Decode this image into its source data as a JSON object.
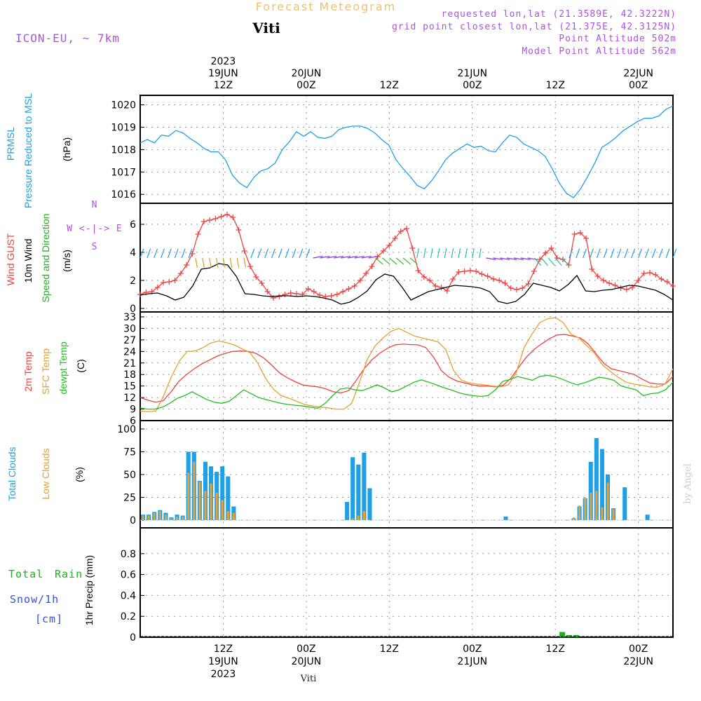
{
  "header": {
    "title": "Forecast Meteogram",
    "station": "Viti",
    "model": "ICON-EU, ~ 7km",
    "requested": "requested lon,lat (21.3589E, 42.3222N)",
    "grid_point": "grid point closest lon,lat (21.375E, 42.3125N)",
    "point_altitude": "Point Altitude 502m",
    "model_altitude": "Model Point Altitude 562m",
    "watermark": "by Angel",
    "footer_station": "Viti"
  },
  "colors": {
    "pressure": "#1ea0e6",
    "gust": "#f04040",
    "wind": "#000000",
    "direction": "#20b020",
    "temp": "#f04040",
    "sfc_temp": "#e8a030",
    "dewpt": "#20c020",
    "total_clouds": "#1ea0e6",
    "low_clouds": "#e8a030",
    "rain": "#20b020",
    "snow": "#3050e0",
    "info": "#b050e0"
  },
  "time_axis": {
    "top_labels": [
      {
        "hour": 12,
        "year": "2023",
        "date": "19JUN",
        "time": "12Z"
      },
      {
        "hour": 24,
        "date": "20JUN",
        "time": "00Z"
      },
      {
        "hour": 36,
        "time": "12Z"
      },
      {
        "hour": 48,
        "date": "21JUN",
        "time": "00Z"
      },
      {
        "hour": 60,
        "time": "12Z"
      },
      {
        "hour": 72,
        "date": "22JUN",
        "time": "00Z"
      }
    ],
    "bottom_labels": [
      {
        "hour": 12,
        "time": "12Z",
        "date": "19JUN",
        "year": "2023"
      },
      {
        "hour": 24,
        "time": "00Z",
        "date": "20JUN"
      },
      {
        "hour": 36,
        "time": "12Z"
      },
      {
        "hour": 48,
        "time": "00Z",
        "date": "21JUN"
      },
      {
        "hour": 60,
        "time": "12Z"
      },
      {
        "hour": 72,
        "time": "00Z",
        "date": "22JUN"
      }
    ]
  },
  "panels": {
    "pressure": {
      "label1": "PRMSL",
      "label2": "Pressure Reduced to MSL",
      "unit": "(hPa)"
    },
    "wind": {
      "label1": "Wind GUST",
      "label2": "10m Wind",
      "label3": "Speed and Direction",
      "unit": "(m/s)",
      "compass_ns": "N",
      "compass_we": "W <-|-> E",
      "compass_s": "S"
    },
    "temp": {
      "label1": "2m Temp",
      "label2": "SFC Temp",
      "label3": "dewpt Temp",
      "unit": "(C)"
    },
    "clouds": {
      "label1": "Total Clouds",
      "label2": "Low Clouds",
      "unit": "(%)"
    },
    "precip": {
      "label1": "Total",
      "label1b": "Rain",
      "label2": "Snow/1h",
      "label3": "[cm]",
      "unit": "1hr Precip (mm)"
    }
  },
  "chart_data": [
    {
      "id": "pressure",
      "type": "line",
      "title": "PRMSL Pressure Reduced to MSL",
      "ylabel": "hPa",
      "ylim": [
        1015.6,
        1020.3
      ],
      "yticks": [
        1016,
        1017,
        1018,
        1019,
        1020
      ],
      "x_start_hour": 0,
      "x_step_hours": 1,
      "series": [
        {
          "name": "PRMSL",
          "values": [
            1018.3,
            1018.45,
            1018.3,
            1018.65,
            1018.6,
            1018.85,
            1018.75,
            1018.5,
            1018.3,
            1018.05,
            1017.9,
            1017.9,
            1017.55,
            1016.85,
            1016.5,
            1016.3,
            1016.75,
            1017.05,
            1017.15,
            1017.4,
            1018.0,
            1018.35,
            1018.8,
            1018.6,
            1018.8,
            1018.55,
            1018.5,
            1018.6,
            1018.9,
            1019.0,
            1019.05,
            1019.05,
            1018.95,
            1018.75,
            1018.45,
            1018.2,
            1017.55,
            1017.15,
            1016.8,
            1016.4,
            1016.25,
            1016.6,
            1017.05,
            1017.55,
            1017.85,
            1018.05,
            1018.25,
            1018.1,
            1018.15,
            1017.95,
            1017.9,
            1018.3,
            1018.65,
            1018.55,
            1018.25,
            1018.1,
            1017.95,
            1017.7,
            1017.15,
            1016.5,
            1016.05,
            1015.85,
            1016.25,
            1016.8,
            1017.4,
            1018.1,
            1018.3,
            1018.55,
            1018.85,
            1019.05,
            1019.25,
            1019.4,
            1019.4,
            1019.5,
            1019.8,
            1019.95
          ]
        }
      ]
    },
    {
      "id": "wind",
      "type": "line",
      "title": "Wind GUST / 10m Wind Speed and Direction",
      "ylabel": "m/s",
      "ylim": [
        0,
        7
      ],
      "yticks": [
        0,
        2,
        4,
        6
      ],
      "x_start_hour": 0,
      "x_step_hours": 1,
      "series": [
        {
          "name": "Wind GUST",
          "values": [
            1.0,
            1.15,
            1.2,
            1.5,
            1.85,
            1.9,
            2.0,
            2.5,
            3.1,
            3.9,
            5.3,
            6.2,
            6.3,
            6.4,
            6.55,
            6.7,
            6.5,
            5.6,
            4.1,
            3.0,
            2.25,
            1.8,
            1.2,
            0.75,
            0.85,
            1.0,
            1.1,
            1.05,
            1.0,
            1.4,
            1.2,
            0.95,
            0.85,
            0.9,
            1.0,
            1.2,
            1.4,
            1.6,
            2.0,
            2.5,
            3.0,
            3.7,
            4.1,
            4.5,
            5.0,
            5.5,
            5.7,
            4.3,
            2.7,
            2.25,
            2.0,
            1.6,
            1.5,
            1.25,
            2.1,
            2.6,
            2.65,
            2.7,
            2.65,
            2.45,
            2.3,
            2.1,
            2.0,
            1.8,
            1.45,
            1.35,
            1.45,
            1.75,
            2.65,
            3.5,
            3.95,
            4.3,
            3.6,
            3.5,
            3.1,
            5.3,
            5.4,
            5.0,
            2.8,
            2.3,
            2.0,
            1.8,
            1.65,
            1.45,
            1.35,
            1.5,
            2.0,
            2.5,
            2.55,
            2.4,
            2.1,
            1.9,
            1.6
          ]
        },
        {
          "name": "10m Wind",
          "values": [
            0.95,
            1.05,
            1.1,
            0.9,
            0.6,
            0.8,
            1.6,
            2.8,
            2.9,
            3.2,
            3.1,
            2.3,
            1.05,
            1.0,
            0.9,
            0.85,
            0.9,
            0.9,
            0.85,
            0.9,
            0.85,
            0.75,
            0.6,
            0.3,
            0.45,
            0.8,
            1.25,
            2.05,
            2.45,
            2.3,
            1.5,
            0.6,
            0.9,
            1.2,
            1.35,
            1.5,
            1.65,
            1.6,
            1.55,
            1.45,
            1.2,
            0.5,
            0.35,
            0.5,
            1.0,
            1.8,
            1.65,
            1.5,
            1.25,
            1.7,
            2.35,
            1.25,
            1.2,
            1.3,
            1.35,
            1.5,
            1.65,
            1.6,
            1.45,
            1.3,
            1.0,
            0.6
          ]
        },
        {
          "name": "Direction arrows",
          "values": [
            "N"
          ]
        }
      ]
    },
    {
      "id": "temp",
      "type": "line",
      "title": "2m Temp / SFC Temp / dewpt Temp",
      "ylabel": "C",
      "ylim": [
        6,
        33
      ],
      "yticks": [
        6,
        9,
        12,
        15,
        18,
        21,
        24,
        27,
        30,
        33
      ],
      "x_start_hour": 0,
      "x_step_hours": 1,
      "series": [
        {
          "name": "2m Temp",
          "values": [
            12.0,
            11.3,
            10.8,
            11.2,
            13.5,
            16.2,
            18.0,
            19.5,
            20.8,
            21.8,
            22.8,
            23.5,
            24.0,
            24.1,
            24.0,
            23.5,
            22.3,
            20.5,
            18.5,
            17.2,
            16.2,
            15.3,
            15.0,
            14.8,
            14.3,
            13.5,
            13.2,
            13.8,
            16.5,
            19.5,
            21.8,
            23.5,
            24.8,
            25.7,
            25.9,
            25.8,
            25.7,
            25.0,
            22.5,
            19.0,
            17.3,
            16.3,
            15.8,
            15.3,
            15.0,
            15.0,
            14.8,
            15.2,
            17.0,
            19.8,
            22.5,
            24.5,
            26.0,
            27.3,
            28.3,
            28.4,
            28.0,
            27.5,
            26.0,
            23.5,
            21.0,
            19.5,
            19.0,
            18.5,
            18.0,
            16.8,
            15.8,
            15.5,
            15.5,
            17.5
          ]
        },
        {
          "name": "SFC Temp",
          "values": [
            8.5,
            8.3,
            8.5,
            12.5,
            17.5,
            21.5,
            24.0,
            24.1,
            25.0,
            26.2,
            26.7,
            26.3,
            25.7,
            24.7,
            23.7,
            21.0,
            17.0,
            14.2,
            12.5,
            11.8,
            11.0,
            10.2,
            9.8,
            9.5,
            9.3,
            9.0,
            9.0,
            10.5,
            16.0,
            22.0,
            25.5,
            27.5,
            29.2,
            30.0,
            29.0,
            28.0,
            27.5,
            27.0,
            26.5,
            24.5,
            19.0,
            16.5,
            15.8,
            15.5,
            15.3,
            15.0,
            14.8,
            15.3,
            18.5,
            25.0,
            28.5,
            31.5,
            32.5,
            32.8,
            31.5,
            28.5,
            27.5,
            25.5,
            23.5,
            20.5,
            18.8,
            17.3,
            16.0,
            15.5,
            15.2,
            14.8,
            14.7,
            15.5,
            19.5
          ]
        },
        {
          "name": "dewpt Temp",
          "values": [
            9.3,
            9.0,
            9.0,
            9.5,
            10.5,
            11.8,
            12.5,
            13.5,
            12.5,
            11.5,
            10.8,
            10.5,
            11.0,
            12.5,
            14.0,
            13.0,
            12.0,
            11.5,
            11.0,
            10.5,
            10.2,
            10.0,
            9.8,
            9.5,
            9.2,
            10.5,
            12.5,
            14.2,
            14.5,
            14.0,
            13.8,
            14.5,
            15.3,
            14.5,
            13.5,
            14.0,
            15.0,
            16.0,
            16.6,
            16.0,
            15.3,
            14.6,
            14.0,
            13.3,
            12.8,
            12.5,
            12.3,
            12.5,
            14.0,
            16.2,
            16.7,
            17.5,
            17.0,
            16.5,
            17.5,
            17.8,
            17.5,
            16.8,
            16.0,
            15.3,
            15.8,
            16.5,
            17.3,
            17.0,
            16.5,
            15.0,
            14.5,
            14.0,
            12.5,
            13.0,
            13.2,
            14.0,
            16.0
          ]
        }
      ]
    },
    {
      "id": "clouds",
      "type": "bar",
      "title": "Total Clouds / Low Clouds",
      "ylabel": "%",
      "ylim": [
        0,
        103
      ],
      "yticks": [
        0,
        25,
        50,
        75,
        100
      ],
      "x_start_hour": 0,
      "x_step_hours": 1,
      "series": [
        {
          "name": "Total Clouds",
          "values": [
            6,
            6,
            9,
            11,
            8,
            3,
            6,
            5,
            75,
            75,
            43,
            64,
            59,
            53,
            59,
            48,
            15,
            0,
            0,
            0,
            0,
            0,
            0,
            0,
            0,
            0,
            0,
            0,
            0,
            0,
            0,
            0,
            0,
            0,
            0,
            0,
            20,
            69,
            61,
            74,
            35,
            0,
            0,
            0,
            0,
            0,
            0,
            0,
            0,
            0,
            0,
            0,
            0,
            0,
            0,
            0,
            0,
            0,
            0,
            0,
            0,
            0,
            0,
            0,
            4,
            0,
            0,
            0,
            0,
            0,
            0,
            0,
            0,
            0,
            0,
            0,
            2,
            15,
            24,
            64,
            90,
            78,
            50,
            13,
            0,
            36,
            0,
            0,
            0,
            6,
            0,
            0,
            0,
            0
          ]
        },
        {
          "name": "Low Clouds",
          "values": [
            5,
            5,
            8,
            10,
            6,
            2,
            4,
            4,
            52,
            64,
            42,
            32,
            40,
            30,
            22,
            10,
            8,
            0,
            0,
            0,
            0,
            0,
            0,
            0,
            0,
            0,
            0,
            0,
            0,
            0,
            0,
            0,
            0,
            0,
            0,
            0,
            0,
            2,
            5,
            10,
            0,
            0,
            0,
            0,
            0,
            0,
            0,
            0,
            0,
            0,
            0,
            0,
            0,
            0,
            0,
            0,
            0,
            0,
            0,
            0,
            0,
            0,
            0,
            0,
            0,
            0,
            0,
            0,
            0,
            0,
            0,
            0,
            0,
            0,
            0,
            0,
            3,
            16,
            25,
            30,
            32,
            14,
            41,
            12,
            0,
            0,
            0,
            0,
            0,
            0,
            0,
            0,
            0,
            0
          ]
        }
      ]
    },
    {
      "id": "precip",
      "type": "bar",
      "title": "1hr Precip",
      "ylabel": "mm",
      "ylim": [
        0,
        1.0
      ],
      "yticks": [
        0,
        0.2,
        0.4,
        0.6,
        0.8
      ],
      "series": [
        {
          "name": "Total Rain",
          "hours": [
            61,
            62,
            63
          ],
          "values": [
            0.05,
            0.02,
            0.02
          ]
        },
        {
          "name": "Snow/1h",
          "hours": [],
          "values": []
        }
      ]
    }
  ]
}
